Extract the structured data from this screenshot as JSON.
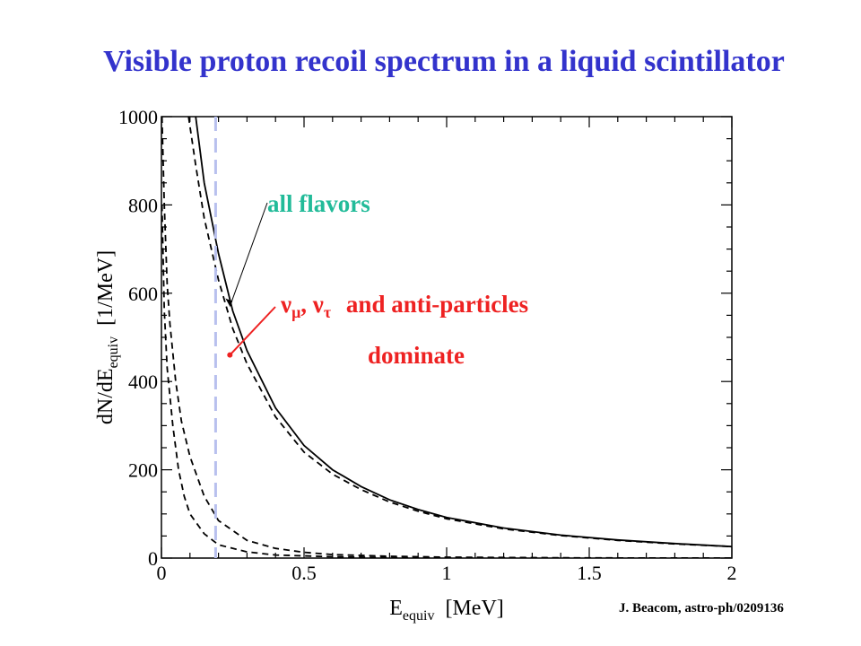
{
  "title": "Visible proton recoil spectrum in a liquid scintillator",
  "credit": "J. Beacom, astro-ph/0209136",
  "colors": {
    "title": "#3333cc",
    "all_flavors": "#22bb99",
    "mu_tau": "#ee2222",
    "threshold": "#b8c0ee",
    "axes": "#000000"
  },
  "chart_data": {
    "type": "line",
    "xlabel": "E_equiv [MeV]",
    "xlabel_main": "E",
    "xlabel_sub": "equiv",
    "xlabel_unit": "[MeV]",
    "ylabel": "dN/dE_equiv [1/MeV]",
    "ylabel_main": "dN/dE",
    "ylabel_sub": "equiv",
    "ylabel_unit": "[1/MeV]",
    "xlim": [
      0,
      2
    ],
    "ylim": [
      0,
      1000
    ],
    "x_ticks": [
      "0",
      "0.5",
      "1",
      "1.5",
      "2"
    ],
    "y_ticks": [
      "0",
      "200",
      "400",
      "600",
      "800",
      "1000"
    ],
    "grid": false,
    "threshold_line": {
      "x": 0.19,
      "style": "dashed",
      "color": "#b8c0ee"
    },
    "series": [
      {
        "style": "solid",
        "points": [
          [
            0.12,
            1000
          ],
          [
            0.15,
            850
          ],
          [
            0.2,
            690
          ],
          [
            0.25,
            560
          ],
          [
            0.3,
            470
          ],
          [
            0.4,
            340
          ],
          [
            0.5,
            255
          ],
          [
            0.6,
            200
          ],
          [
            0.7,
            162
          ],
          [
            0.8,
            132
          ],
          [
            0.9,
            110
          ],
          [
            1.0,
            92
          ],
          [
            1.2,
            68
          ],
          [
            1.4,
            52
          ],
          [
            1.6,
            41
          ],
          [
            1.8,
            33
          ],
          [
            2.0,
            26
          ]
        ]
      },
      {
        "style": "dashed",
        "points": [
          [
            0.095,
            1000
          ],
          [
            0.12,
            890
          ],
          [
            0.15,
            770
          ],
          [
            0.2,
            630
          ],
          [
            0.25,
            520
          ],
          [
            0.3,
            440
          ],
          [
            0.4,
            320
          ],
          [
            0.5,
            240
          ],
          [
            0.6,
            190
          ],
          [
            0.7,
            155
          ],
          [
            0.8,
            127
          ],
          [
            0.9,
            106
          ],
          [
            1.0,
            89
          ],
          [
            1.2,
            66
          ],
          [
            1.4,
            51
          ],
          [
            1.6,
            40
          ],
          [
            1.8,
            32
          ],
          [
            2.0,
            26
          ]
        ]
      },
      {
        "style": "dashed",
        "points": [
          [
            0.002,
            1000
          ],
          [
            0.01,
            800
          ],
          [
            0.02,
            620
          ],
          [
            0.03,
            530
          ],
          [
            0.05,
            400
          ],
          [
            0.07,
            310
          ],
          [
            0.1,
            230
          ],
          [
            0.15,
            140
          ],
          [
            0.2,
            85
          ],
          [
            0.3,
            40
          ],
          [
            0.4,
            22
          ],
          [
            0.5,
            13
          ],
          [
            0.6,
            8
          ],
          [
            0.8,
            4
          ],
          [
            1.0,
            2
          ],
          [
            1.5,
            0.5
          ],
          [
            2.0,
            0
          ]
        ]
      },
      {
        "style": "dashed",
        "points": [
          [
            0.002,
            800
          ],
          [
            0.01,
            560
          ],
          [
            0.02,
            430
          ],
          [
            0.04,
            300
          ],
          [
            0.06,
            200
          ],
          [
            0.08,
            140
          ],
          [
            0.1,
            100
          ],
          [
            0.15,
            55
          ],
          [
            0.2,
            30
          ],
          [
            0.3,
            14
          ],
          [
            0.4,
            7
          ],
          [
            0.6,
            3
          ],
          [
            0.8,
            1
          ],
          [
            1.0,
            0.5
          ],
          [
            2.0,
            0
          ]
        ]
      }
    ],
    "annotations": [
      {
        "text": "all flavors",
        "color": "#22bb99",
        "points_to_x": 0.24,
        "points_to_y": 570
      },
      {
        "text_parts": [
          "ν",
          "μ",
          ", ",
          "ν",
          "τ",
          " and anti-particles"
        ],
        "color": "#ee2222",
        "points_to_x": 0.24,
        "points_to_y": 460
      },
      {
        "text": "dominate",
        "color": "#ee2222"
      }
    ]
  }
}
